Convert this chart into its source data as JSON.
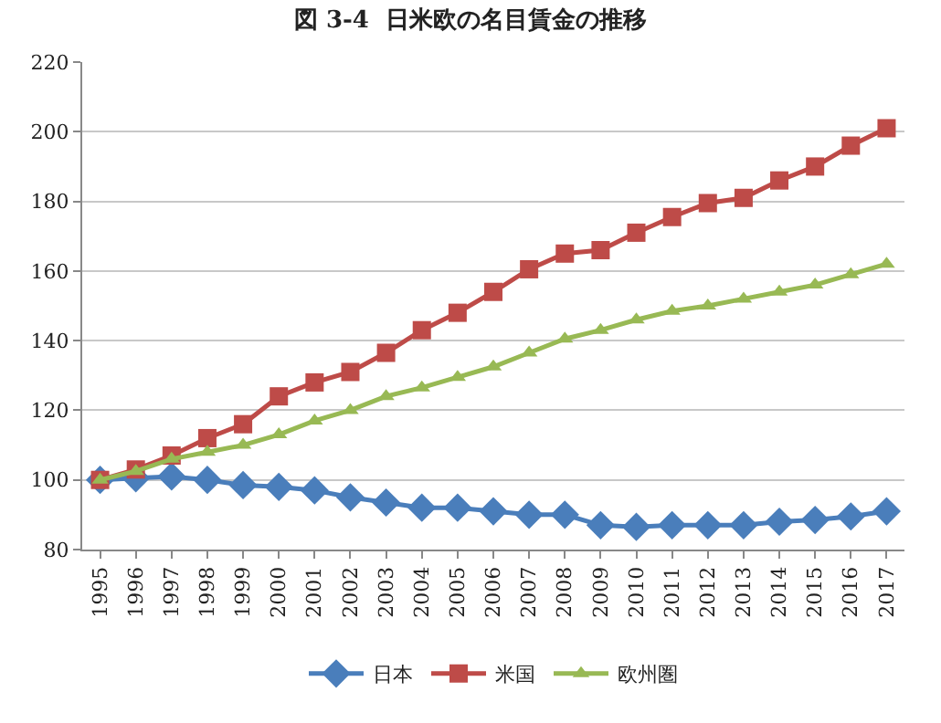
{
  "chart_data": {
    "type": "line",
    "title": "図 3-4  日米欧の名目賃金の推移",
    "categories": [
      "1995",
      "1996",
      "1997",
      "1998",
      "1999",
      "2000",
      "2001",
      "2002",
      "2003",
      "2004",
      "2005",
      "2006",
      "2007",
      "2008",
      "2009",
      "2010",
      "2011",
      "2012",
      "2013",
      "2014",
      "2015",
      "2016",
      "2017"
    ],
    "series": [
      {
        "name": "日本",
        "color": "#4a7ebb",
        "marker": "diamond",
        "values": [
          100,
          100.5,
          101,
          100,
          98.5,
          98,
          97,
          95,
          93.5,
          92,
          92,
          91,
          90,
          90,
          87,
          86.5,
          87,
          87,
          87,
          88,
          88.5,
          89.5,
          91
        ]
      },
      {
        "name": "米国",
        "color": "#be4b48",
        "marker": "square",
        "values": [
          100,
          103,
          107,
          112,
          116,
          124,
          128,
          131,
          136.5,
          143,
          148,
          154,
          160.5,
          165,
          166,
          171,
          175.5,
          179.5,
          181,
          186,
          190,
          196,
          201
        ]
      },
      {
        "name": "欧州圏",
        "color": "#98b954",
        "marker": "triangle",
        "values": [
          100,
          102.5,
          106,
          108,
          110,
          113,
          117,
          120,
          124,
          126.5,
          129.5,
          132.5,
          136.5,
          140.5,
          143,
          146,
          148.5,
          150,
          152,
          154,
          156,
          159,
          162
        ]
      }
    ],
    "ylim": [
      80,
      220
    ],
    "yticks": [
      80,
      100,
      120,
      140,
      160,
      180,
      200,
      220
    ],
    "grid": "y",
    "legend": "bottom",
    "line_style": "solid"
  }
}
